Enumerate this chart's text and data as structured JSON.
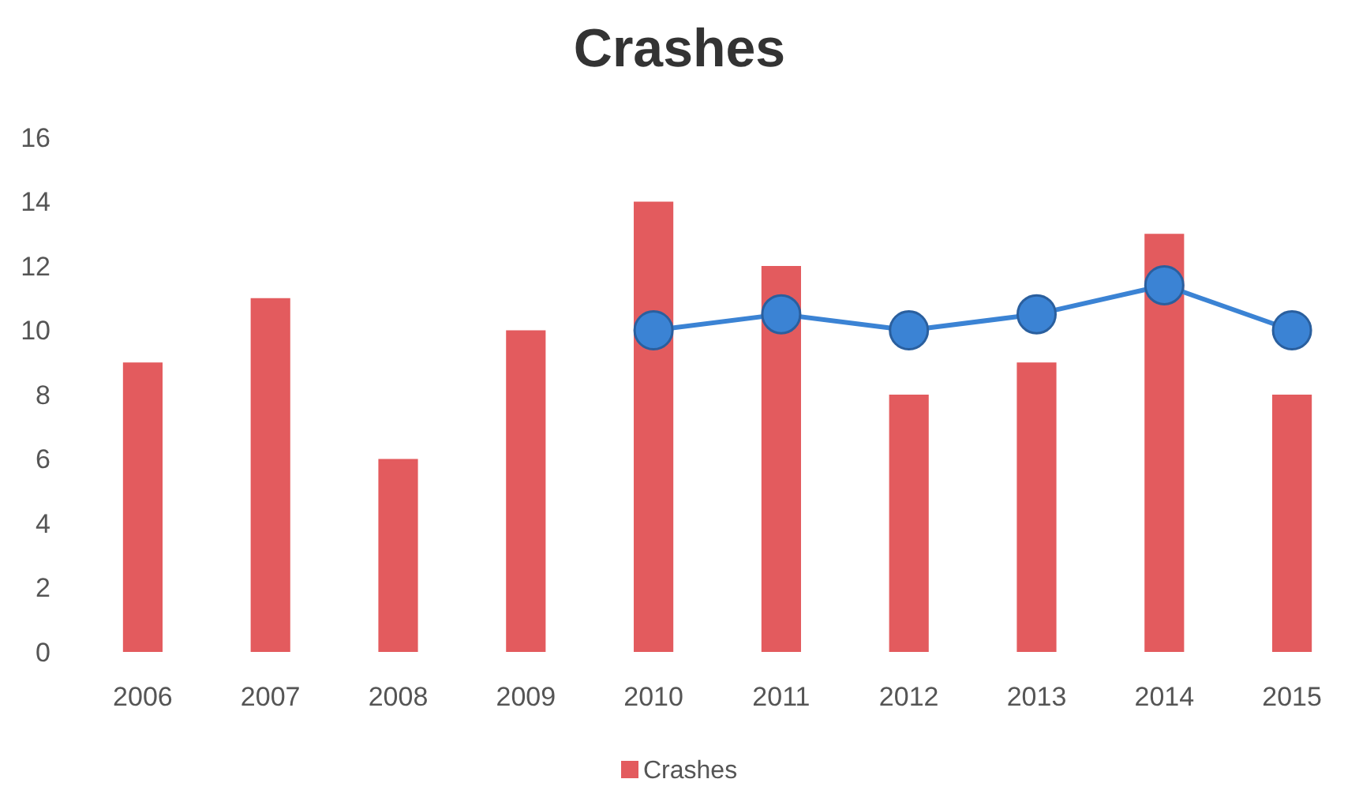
{
  "chart_data": {
    "type": "bar",
    "title": "Crashes",
    "categories": [
      "2006",
      "2007",
      "2008",
      "2009",
      "2010",
      "2011",
      "2012",
      "2013",
      "2014",
      "2015"
    ],
    "series": [
      {
        "name": "Crashes",
        "color": "#e35b5e",
        "values": [
          9,
          11,
          6,
          10,
          14,
          12,
          8,
          9,
          13,
          8
        ]
      },
      {
        "type": "line",
        "color": "#3b83d4",
        "marker": "circle",
        "values": [
          null,
          null,
          null,
          null,
          10,
          10.5,
          10,
          10.5,
          11.4,
          10
        ]
      }
    ],
    "ylim": [
      0,
      16
    ],
    "yticks": [
      0,
      2,
      4,
      6,
      8,
      10,
      12,
      14,
      16
    ],
    "grid": false,
    "legend": "bottom"
  }
}
